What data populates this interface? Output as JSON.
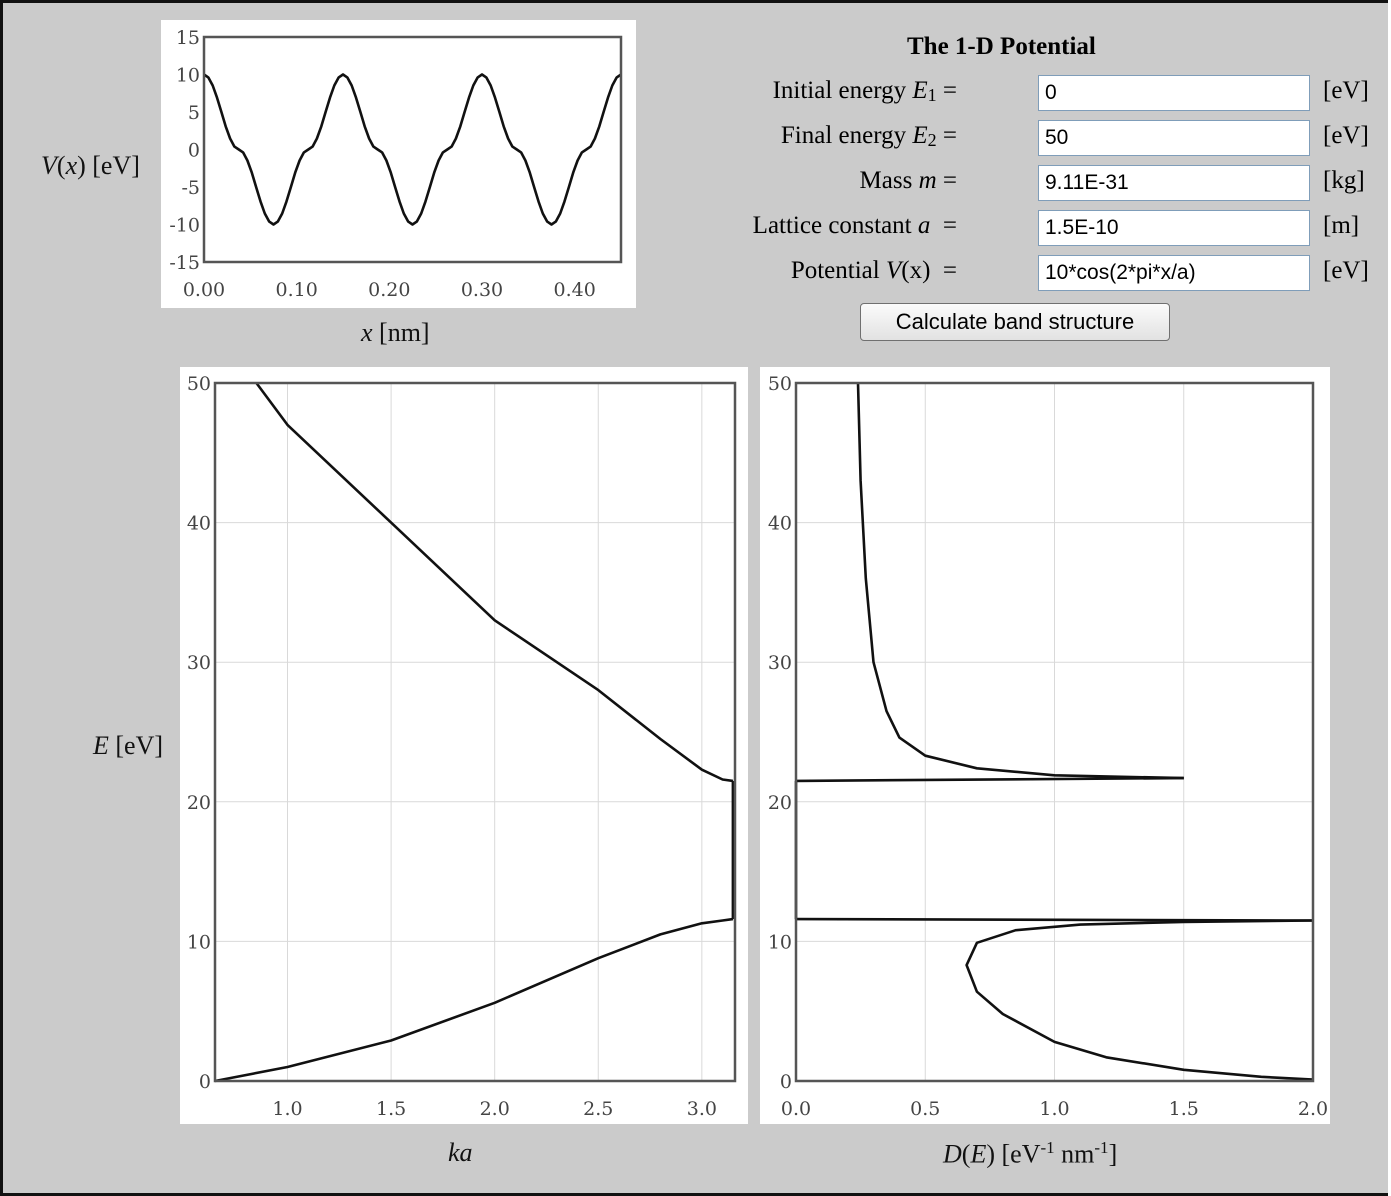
{
  "form": {
    "title": "The 1-D Potential",
    "rows": [
      {
        "label_prefix": "Initial energy ",
        "label_var": "E",
        "label_sub": "1",
        "label_suffix": " =",
        "value": "0",
        "unit": "[eV]"
      },
      {
        "label_prefix": "Final energy ",
        "label_var": "E",
        "label_sub": "2",
        "label_suffix": " =",
        "value": "50",
        "unit": "[eV]"
      },
      {
        "label_prefix": "Mass ",
        "label_var": "m",
        "label_sub": "",
        "label_suffix": " =",
        "value": "9.11E-31",
        "unit": "[kg]"
      },
      {
        "label_prefix": "Lattice constant ",
        "label_var": "a",
        "label_sub": "",
        "label_suffix": "  =",
        "value": "1.5E-10",
        "unit": "[m]"
      },
      {
        "label_prefix": "Potential ",
        "label_var": "V",
        "label_sub": "",
        "label_suffix": "(x)  =",
        "value": "10*cos(2*pi*x/a)",
        "unit": "[eV]"
      }
    ],
    "button_label": "Calculate band structure"
  },
  "labels": {
    "potential_y": {
      "var": "V",
      "rest": "(x) [eV]",
      "x_var": "x"
    },
    "potential_x": {
      "var": "x",
      "rest": " [nm]"
    },
    "band_y": {
      "var": "E",
      "rest": " [eV]"
    },
    "band_x": {
      "var": "ka"
    },
    "dos_x": {
      "var": "D",
      "p1": "(",
      "var2": "E",
      "p2": ") [eV",
      "sup1": "-1",
      "mid": " nm",
      "sup2": "-1",
      "end": "]"
    }
  },
  "chart_data": [
    {
      "type": "line",
      "name": "potential",
      "xlim": [
        0,
        0.45
      ],
      "ylim": [
        -15,
        15
      ],
      "xticks": [
        "0.00",
        "0.10",
        "0.20",
        "0.30",
        "0.40"
      ],
      "xtick_values": [
        0,
        0.1,
        0.2,
        0.3,
        0.4
      ],
      "yticks": [
        "15",
        "10",
        "5",
        "0",
        "-5",
        "-10",
        "-15"
      ],
      "ytick_values": [
        15,
        10,
        5,
        0,
        -5,
        -10,
        -15
      ],
      "grid": false,
      "series": [
        {
          "x": [
            0,
            0.0375,
            0.075,
            0.1125,
            0.15,
            0.1875,
            0.225,
            0.2625,
            0.3,
            0.3375,
            0.375,
            0.4125,
            0.45
          ],
          "y": [
            10,
            0,
            -10,
            0,
            10,
            0,
            -10,
            0,
            10,
            0,
            -10,
            0,
            10
          ]
        }
      ]
    },
    {
      "type": "line",
      "name": "band-structure",
      "xlim": [
        0.65,
        3.16
      ],
      "ylim": [
        0,
        50
      ],
      "xticks": [
        "1.0",
        "1.5",
        "2.0",
        "2.5",
        "3.0"
      ],
      "xtick_values": [
        1,
        1.5,
        2,
        2.5,
        3
      ],
      "yticks": [
        "50",
        "40",
        "30",
        "20",
        "10",
        "0"
      ],
      "ytick_values": [
        50,
        40,
        30,
        20,
        10,
        0
      ],
      "grid": true,
      "series": [
        {
          "x": [
            0.65,
            1.0,
            1.5,
            2.0,
            2.5,
            2.8,
            3.0,
            3.1,
            3.15
          ],
          "y": [
            0,
            1,
            2.9,
            5.6,
            8.8,
            10.5,
            11.3,
            11.5,
            11.6
          ]
        },
        {
          "x": [
            3.15,
            3.15
          ],
          "y": [
            11.6,
            21.5
          ]
        },
        {
          "x": [
            3.15,
            3.1,
            3.0,
            2.8,
            2.5,
            2.0,
            1.5,
            1.0,
            0.85
          ],
          "y": [
            21.5,
            21.6,
            22.3,
            24.5,
            28.0,
            33.0,
            40.0,
            47.0,
            50.0
          ]
        }
      ]
    },
    {
      "type": "line",
      "name": "density-of-states",
      "xlim": [
        0,
        2
      ],
      "ylim": [
        0,
        50
      ],
      "xticks": [
        "0.0",
        "0.5",
        "1.0",
        "1.5",
        "2.0"
      ],
      "xtick_values": [
        0,
        0.5,
        1,
        1.5,
        2
      ],
      "yticks": [
        "50",
        "40",
        "30",
        "20",
        "10",
        "0"
      ],
      "ytick_values": [
        50,
        40,
        30,
        20,
        10,
        0
      ],
      "grid": true,
      "series": [
        {
          "x": [
            2.0,
            1.8,
            1.5,
            1.2,
            1.0,
            0.8,
            0.7,
            0.66,
            0.7,
            0.85,
            1.1,
            1.5,
            2.0
          ],
          "y": [
            0.1,
            0.3,
            0.8,
            1.7,
            2.8,
            4.8,
            6.4,
            8.3,
            9.9,
            10.8,
            11.2,
            11.4,
            11.5
          ]
        },
        {
          "x": [
            2.0,
            0.0
          ],
          "y": [
            11.5,
            11.6
          ]
        },
        {
          "x": [
            0.0,
            0.0
          ],
          "y": [
            11.6,
            21.5
          ]
        },
        {
          "x": [
            0.0,
            1.5
          ],
          "y": [
            21.5,
            21.7
          ]
        },
        {
          "x": [
            1.5,
            1.0,
            0.7,
            0.5,
            0.4,
            0.35,
            0.3,
            0.27,
            0.25,
            0.24
          ],
          "y": [
            21.7,
            21.9,
            22.4,
            23.3,
            24.6,
            26.5,
            30.0,
            36.0,
            43.0,
            50.0
          ]
        }
      ]
    }
  ]
}
